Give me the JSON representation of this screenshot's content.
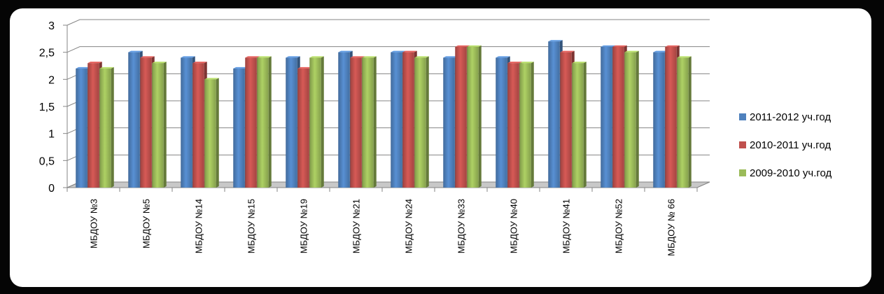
{
  "chart_data": {
    "type": "bar",
    "title": "",
    "xlabel": "",
    "ylabel": "",
    "ylim": [
      0,
      3
    ],
    "yticks": [
      "0",
      "0,5",
      "1",
      "1,5",
      "2",
      "2,5",
      "3"
    ],
    "grid": true,
    "legend_position": "right",
    "categories": [
      "МБДОУ  №3",
      "МБДОУ №5",
      "МБДОУ №14",
      "МБДОУ №15",
      "МБДОУ  №19",
      "МБДОУ №21",
      "МБДОУ №24",
      "МБДОУ  №33",
      "МБДОУ  №40",
      "МБДОУ №41",
      "МБДОУ №52",
      "МБДОУ № 66"
    ],
    "series": [
      {
        "name": "2011-2012 уч.год",
        "color": "#4F81BD",
        "values": [
          2.2,
          2.5,
          2.4,
          2.2,
          2.4,
          2.5,
          2.5,
          2.4,
          2.4,
          2.7,
          2.6,
          2.5
        ]
      },
      {
        "name": "2010-2011 уч.год",
        "color": "#C0504D",
        "values": [
          2.3,
          2.4,
          2.3,
          2.4,
          2.2,
          2.4,
          2.5,
          2.6,
          2.3,
          2.5,
          2.6,
          2.6
        ]
      },
      {
        "name": "2009-2010 уч.год",
        "color": "#9BBB59",
        "values": [
          2.2,
          2.3,
          2.0,
          2.4,
          2.4,
          2.4,
          2.4,
          2.6,
          2.3,
          2.3,
          2.5,
          2.4
        ]
      }
    ]
  }
}
